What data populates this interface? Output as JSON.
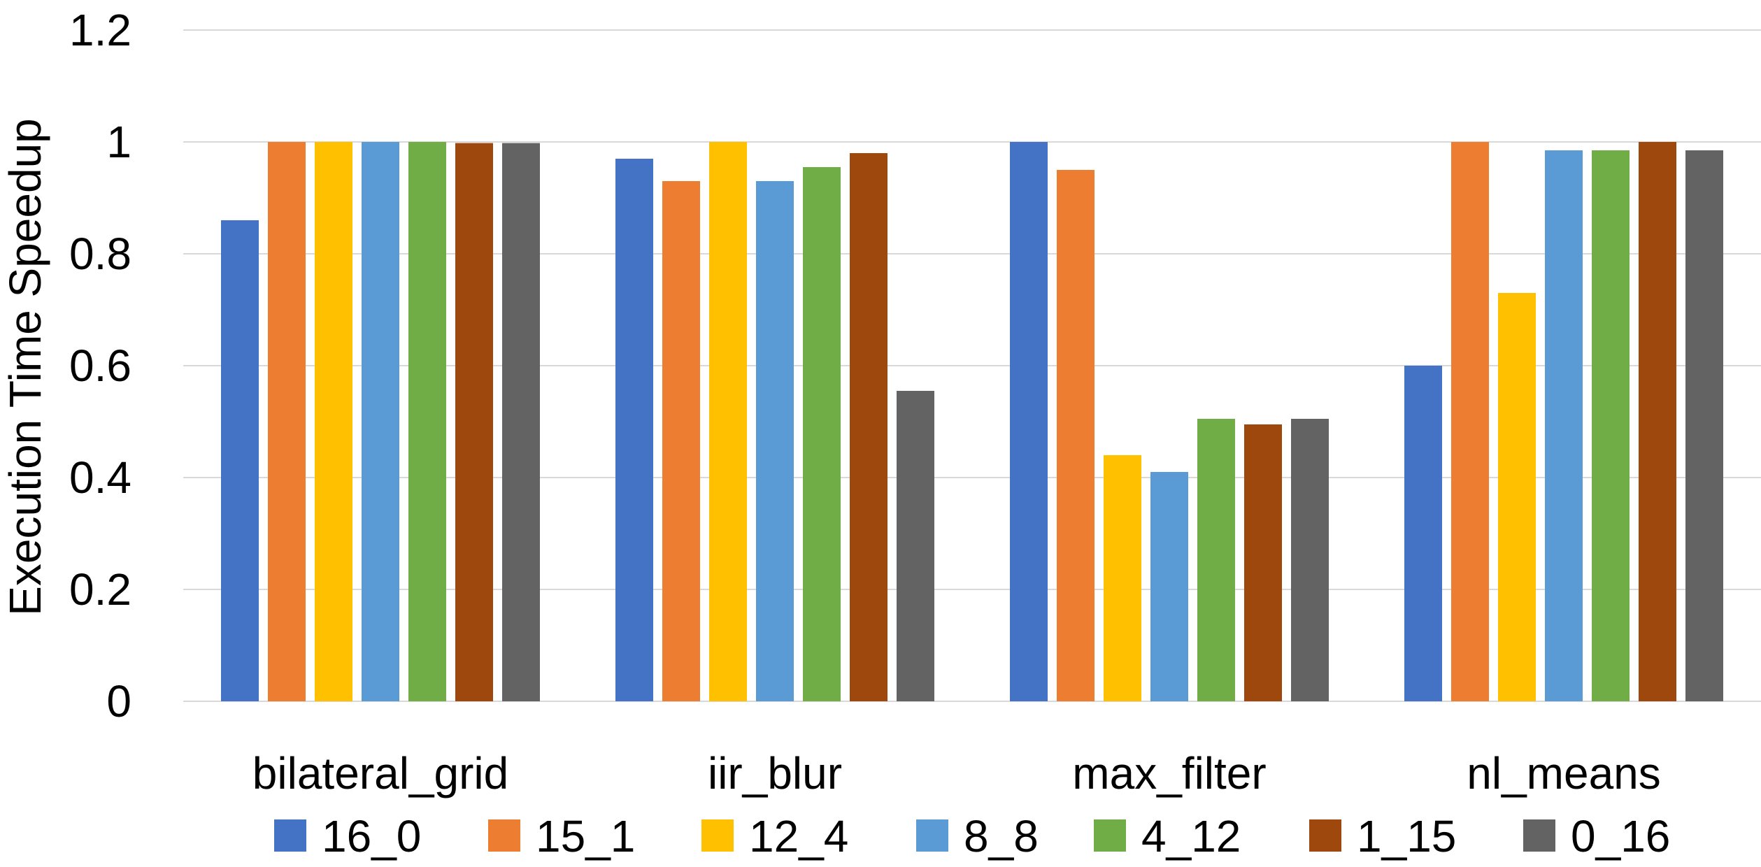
{
  "chart_data": {
    "type": "bar",
    "title": "",
    "xlabel": "",
    "ylabel": "Execution Time Speedup",
    "ylim": [
      0,
      1.2
    ],
    "yticks": [
      "0",
      "0.2",
      "0.4",
      "0.6",
      "0.8",
      "1",
      "1.2"
    ],
    "grid": "horizontal",
    "legend_position": "bottom",
    "categories": [
      "bilateral_grid",
      "iir_blur",
      "max_filter",
      "nl_means"
    ],
    "series": [
      {
        "name": "16_0",
        "color": "#4472C4",
        "values": [
          0.86,
          0.97,
          1.0,
          0.6
        ]
      },
      {
        "name": "15_1",
        "color": "#ED7D31",
        "values": [
          1.0,
          0.93,
          0.95,
          1.0
        ]
      },
      {
        "name": "12_4",
        "color": "#FFC000",
        "values": [
          1.0,
          1.0,
          0.44,
          0.73
        ]
      },
      {
        "name": "8_8",
        "color": "#5B9BD5",
        "values": [
          1.0,
          0.93,
          0.41,
          0.985
        ]
      },
      {
        "name": "4_12",
        "color": "#70AD47",
        "values": [
          1.0,
          0.955,
          0.505,
          0.985
        ]
      },
      {
        "name": "1_15",
        "color": "#9E480E",
        "values": [
          0.998,
          0.98,
          0.495,
          1.0
        ]
      },
      {
        "name": "0_16",
        "color": "#636363",
        "values": [
          0.998,
          0.555,
          0.505,
          0.985
        ]
      }
    ]
  }
}
